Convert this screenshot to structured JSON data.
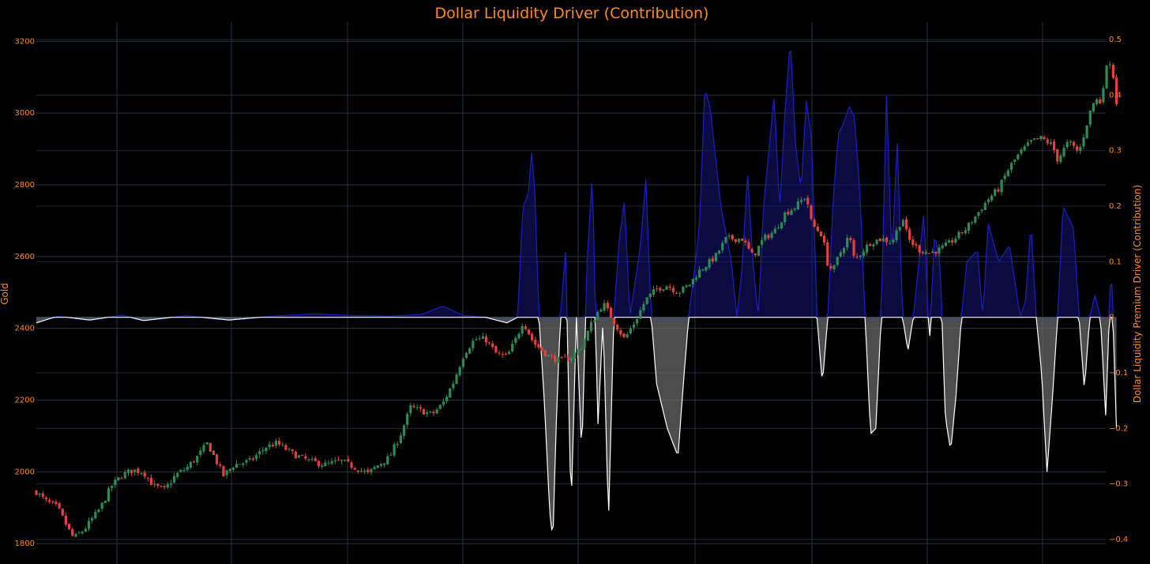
{
  "chart_data": {
    "type": "candlestick_with_area",
    "title": "Dollar Liquidity Driver (Contribution)",
    "y_left": {
      "label": "Gold",
      "range": [
        1796,
        3236
      ],
      "ticks": [
        1800,
        2000,
        2200,
        2400,
        2600,
        2800,
        3000,
        3200
      ]
    },
    "y_right": {
      "label": "Dollar Liquidity Premium Driver (Contribution)",
      "range": [
        -0.41,
        0.52
      ],
      "ticks": [
        -0.4,
        -0.3,
        -0.2,
        -0.1,
        0,
        0.1,
        0.2,
        0.3,
        0.4,
        0.5
      ],
      "tick_labels": [
        "−0.4",
        "−0.3",
        "−0.2",
        "−0.1",
        "0",
        "0.1",
        "0.2",
        "0.3",
        "0.4",
        "0.5"
      ]
    },
    "grid": true,
    "x_tick_labels_visible": false,
    "colors": {
      "background": "#000000",
      "grid": "#283442",
      "text": "#ff8c1a",
      "candle_up": "#2e8b57",
      "candle_down": "#e8413d",
      "positive_line": "#1f1fbf",
      "positive_fill": "rgba(20,20,120,0.55)",
      "negative_line": "#ffffff",
      "negative_fill": "rgba(110,110,110,0.7)"
    },
    "gold_keypoints": [
      [
        0,
        1945
      ],
      [
        0.008,
        1920
      ],
      [
        0.02,
        1900
      ],
      [
        0.03,
        1840
      ],
      [
        0.035,
        1815
      ],
      [
        0.045,
        1840
      ],
      [
        0.06,
        1900
      ],
      [
        0.07,
        1960
      ],
      [
        0.08,
        1990
      ],
      [
        0.09,
        2005
      ],
      [
        0.1,
        2000
      ],
      [
        0.11,
        1960
      ],
      [
        0.12,
        1950
      ],
      [
        0.13,
        1990
      ],
      [
        0.14,
        2010
      ],
      [
        0.15,
        2040
      ],
      [
        0.16,
        2080
      ],
      [
        0.165,
        2050
      ],
      [
        0.175,
        1990
      ],
      [
        0.185,
        2020
      ],
      [
        0.2,
        2030
      ],
      [
        0.215,
        2070
      ],
      [
        0.225,
        2080
      ],
      [
        0.24,
        2050
      ],
      [
        0.255,
        2030
      ],
      [
        0.27,
        2020
      ],
      [
        0.285,
        2030
      ],
      [
        0.3,
        2010
      ],
      [
        0.31,
        1995
      ],
      [
        0.32,
        2020
      ],
      [
        0.33,
        2040
      ],
      [
        0.34,
        2100
      ],
      [
        0.35,
        2180
      ],
      [
        0.36,
        2170
      ],
      [
        0.37,
        2160
      ],
      [
        0.38,
        2190
      ],
      [
        0.39,
        2250
      ],
      [
        0.4,
        2330
      ],
      [
        0.41,
        2370
      ],
      [
        0.42,
        2370
      ],
      [
        0.43,
        2330
      ],
      [
        0.44,
        2320
      ],
      [
        0.45,
        2380
      ],
      [
        0.455,
        2420
      ],
      [
        0.465,
        2360
      ],
      [
        0.48,
        2320
      ],
      [
        0.49,
        2310
      ],
      [
        0.5,
        2320
      ],
      [
        0.51,
        2350
      ],
      [
        0.52,
        2420
      ],
      [
        0.53,
        2470
      ],
      [
        0.54,
        2420
      ],
      [
        0.55,
        2370
      ],
      [
        0.56,
        2420
      ],
      [
        0.57,
        2480
      ],
      [
        0.58,
        2510
      ],
      [
        0.59,
        2520
      ],
      [
        0.6,
        2500
      ],
      [
        0.61,
        2520
      ],
      [
        0.62,
        2560
      ],
      [
        0.635,
        2600
      ],
      [
        0.645,
        2650
      ],
      [
        0.66,
        2650
      ],
      [
        0.67,
        2600
      ],
      [
        0.68,
        2650
      ],
      [
        0.69,
        2670
      ],
      [
        0.7,
        2720
      ],
      [
        0.71,
        2740
      ],
      [
        0.72,
        2770
      ],
      [
        0.725,
        2690
      ],
      [
        0.735,
        2660
      ],
      [
        0.74,
        2580
      ],
      [
        0.745,
        2560
      ],
      [
        0.75,
        2600
      ],
      [
        0.76,
        2660
      ],
      [
        0.765,
        2590
      ],
      [
        0.78,
        2640
      ],
      [
        0.79,
        2650
      ],
      [
        0.8,
        2640
      ],
      [
        0.81,
        2710
      ],
      [
        0.815,
        2650
      ],
      [
        0.825,
        2620
      ],
      [
        0.835,
        2610
      ],
      [
        0.845,
        2620
      ],
      [
        0.855,
        2640
      ],
      [
        0.87,
        2680
      ],
      [
        0.88,
        2720
      ],
      [
        0.89,
        2760
      ],
      [
        0.9,
        2790
      ],
      [
        0.91,
        2850
      ],
      [
        0.92,
        2890
      ],
      [
        0.93,
        2920
      ],
      [
        0.94,
        2930
      ],
      [
        0.95,
        2910
      ],
      [
        0.955,
        2870
      ],
      [
        0.965,
        2920
      ],
      [
        0.975,
        2890
      ],
      [
        0.985,
        3000
      ],
      [
        0.99,
        3040
      ],
      [
        0.995,
        3030
      ],
      [
        1.0,
        3120
      ],
      [
        1.005,
        3150
      ],
      [
        1.01,
        3030
      ]
    ],
    "contribution_keypoints": [
      [
        0,
        -0.01
      ],
      [
        0.02,
        0.002
      ],
      [
        0.05,
        -0.005
      ],
      [
        0.08,
        0.004
      ],
      [
        0.1,
        -0.006
      ],
      [
        0.14,
        0.003
      ],
      [
        0.18,
        -0.005
      ],
      [
        0.22,
        0.002
      ],
      [
        0.26,
        0.006
      ],
      [
        0.3,
        0.003
      ],
      [
        0.33,
        0.002
      ],
      [
        0.36,
        0.005
      ],
      [
        0.38,
        0.02
      ],
      [
        0.4,
        0.003
      ],
      [
        0.42,
        0.0
      ],
      [
        0.43,
        -0.005
      ],
      [
        0.44,
        -0.01
      ],
      [
        0.45,
        0.0
      ],
      [
        0.455,
        0.2
      ],
      [
        0.46,
        0.22
      ],
      [
        0.463,
        0.3
      ],
      [
        0.466,
        0.23
      ],
      [
        0.47,
        0.0
      ],
      [
        0.475,
        -0.15
      ],
      [
        0.48,
        -0.35
      ],
      [
        0.483,
        -0.4
      ],
      [
        0.486,
        -0.2
      ],
      [
        0.49,
        0.0
      ],
      [
        0.495,
        0.12
      ],
      [
        0.5,
        -0.35
      ],
      [
        0.505,
        0.0
      ],
      [
        0.51,
        -0.25
      ],
      [
        0.515,
        0.1
      ],
      [
        0.52,
        0.26
      ],
      [
        0.525,
        -0.2
      ],
      [
        0.53,
        0.0
      ],
      [
        0.535,
        -0.37
      ],
      [
        0.54,
        0.0
      ],
      [
        0.545,
        0.14
      ],
      [
        0.55,
        0.21
      ],
      [
        0.555,
        0.0
      ],
      [
        0.565,
        0.13
      ],
      [
        0.57,
        0.25
      ],
      [
        0.575,
        0.0
      ],
      [
        0.58,
        -0.12
      ],
      [
        0.59,
        -0.2
      ],
      [
        0.6,
        -0.25
      ],
      [
        0.605,
        -0.12
      ],
      [
        0.61,
        0.0
      ],
      [
        0.62,
        0.16
      ],
      [
        0.625,
        0.41
      ],
      [
        0.63,
        0.38
      ],
      [
        0.64,
        0.2
      ],
      [
        0.65,
        0.1
      ],
      [
        0.655,
        0.0
      ],
      [
        0.66,
        0.09
      ],
      [
        0.665,
        0.26
      ],
      [
        0.67,
        0.1
      ],
      [
        0.675,
        0.0
      ],
      [
        0.68,
        0.2
      ],
      [
        0.69,
        0.4
      ],
      [
        0.695,
        0.19
      ],
      [
        0.7,
        0.37
      ],
      [
        0.705,
        0.5
      ],
      [
        0.71,
        0.31
      ],
      [
        0.715,
        0.23
      ],
      [
        0.72,
        0.39
      ],
      [
        0.725,
        0.32
      ],
      [
        0.73,
        0.0
      ],
      [
        0.735,
        -0.12
      ],
      [
        0.74,
        0.0
      ],
      [
        0.745,
        0.21
      ],
      [
        0.75,
        0.33
      ],
      [
        0.755,
        0.35
      ],
      [
        0.76,
        0.38
      ],
      [
        0.765,
        0.36
      ],
      [
        0.77,
        0.23
      ],
      [
        0.775,
        0.0
      ],
      [
        0.78,
        -0.21
      ],
      [
        0.785,
        -0.2
      ],
      [
        0.79,
        0.0
      ],
      [
        0.795,
        0.4
      ],
      [
        0.8,
        0.1
      ],
      [
        0.805,
        0.32
      ],
      [
        0.81,
        0.0
      ],
      [
        0.815,
        -0.06
      ],
      [
        0.82,
        0.0
      ],
      [
        0.83,
        0.19
      ],
      [
        0.835,
        -0.05
      ],
      [
        0.84,
        0.15
      ],
      [
        0.845,
        0.1
      ],
      [
        0.85,
        -0.18
      ],
      [
        0.855,
        -0.24
      ],
      [
        0.86,
        -0.14
      ],
      [
        0.865,
        0.0
      ],
      [
        0.87,
        0.1
      ],
      [
        0.88,
        0.12
      ],
      [
        0.885,
        0.0
      ],
      [
        0.89,
        0.17
      ],
      [
        0.9,
        0.1
      ],
      [
        0.91,
        0.13
      ],
      [
        0.92,
        0.0
      ],
      [
        0.925,
        0.03
      ],
      [
        0.93,
        0.17
      ],
      [
        0.935,
        0.0
      ],
      [
        0.94,
        -0.1
      ],
      [
        0.945,
        -0.28
      ],
      [
        0.95,
        -0.15
      ],
      [
        0.955,
        0.0
      ],
      [
        0.96,
        0.2
      ],
      [
        0.97,
        0.16
      ],
      [
        0.975,
        0.0
      ],
      [
        0.98,
        -0.13
      ],
      [
        0.985,
        0.0
      ],
      [
        0.99,
        0.04
      ],
      [
        0.995,
        0.0
      ],
      [
        1.0,
        -0.18
      ],
      [
        1.005,
        0.1
      ],
      [
        1.01,
        -0.2
      ]
    ]
  }
}
